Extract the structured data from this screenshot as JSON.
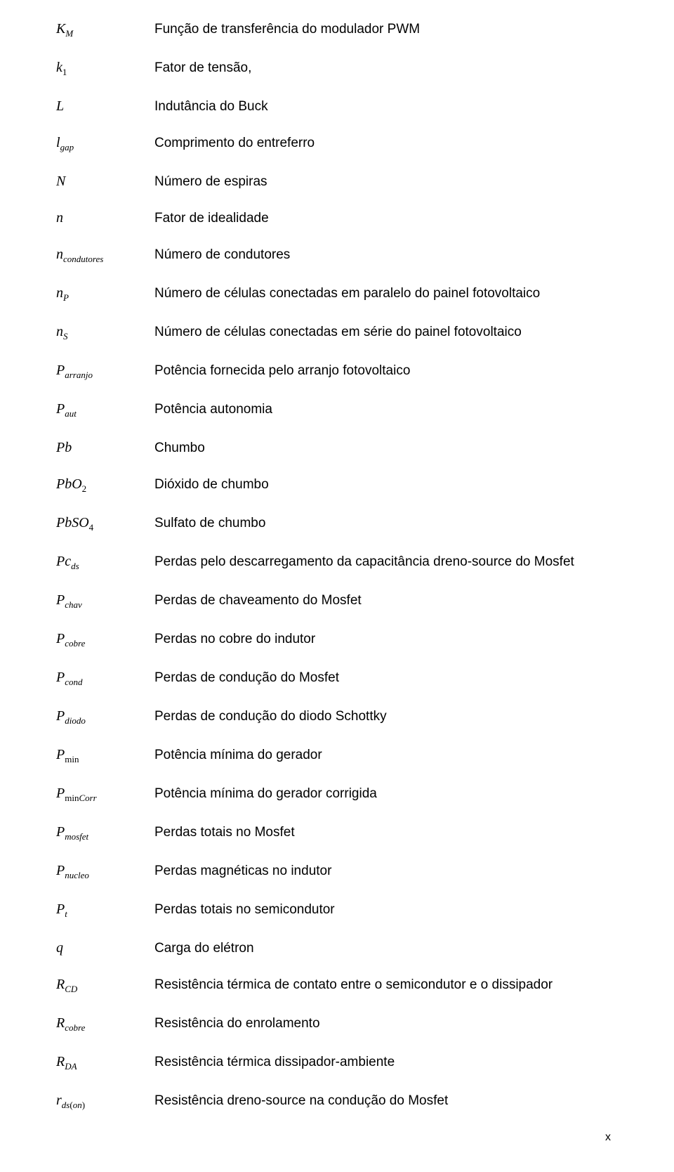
{
  "rows": [
    {
      "sym": "K<span class='sub'>M</span>",
      "desc": "Função de transferência do modulador PWM"
    },
    {
      "sym": "k<span class='subn'>1</span>",
      "desc": "Fator de tensão,"
    },
    {
      "sym": "L",
      "desc": "Indutância do Buck"
    },
    {
      "sym": "l<span class='sub'>gap</span>",
      "desc": "Comprimento do entreferro"
    },
    {
      "sym": "N",
      "desc": "Número de espiras"
    },
    {
      "sym": "n",
      "desc": "Fator de idealidade"
    },
    {
      "sym": "n<span class='sub'>condutores</span>",
      "desc": "Número de condutores"
    },
    {
      "sym": "n<span class='sub'>P</span>",
      "desc": "Número de células conectadas em paralelo do painel fotovoltaico"
    },
    {
      "sym": "n<span class='sub'>S</span>",
      "desc": "Número de células conectadas em série do painel fotovoltaico"
    },
    {
      "sym": "P<span class='sub'>arranjo</span>",
      "desc": "Potência fornecida pelo arranjo fotovoltaico"
    },
    {
      "sym": "P<span class='sub'>aut</span>",
      "desc": "Potência autonomia"
    },
    {
      "sym": "Pb",
      "desc": "Chumbo"
    },
    {
      "sym": "PbO<span class='subn'>2</span>",
      "desc": "Dióxido de chumbo"
    },
    {
      "sym": "PbSO<span class='subn'>4</span>",
      "desc": "Sulfato de chumbo"
    },
    {
      "sym": "Pc<span class='sub'>ds</span>",
      "desc": "Perdas pelo descarregamento da capacitância dreno-source do Mosfet"
    },
    {
      "sym": "P<span class='sub'>chav</span>",
      "desc": "Perdas de chaveamento do Mosfet"
    },
    {
      "sym": "P<span class='sub'>cobre</span>",
      "desc": "Perdas no cobre do indutor"
    },
    {
      "sym": "P<span class='sub'>cond</span>",
      "desc": "Perdas de condução do Mosfet"
    },
    {
      "sym": "P<span class='sub'>diodo</span>",
      "desc": "Perdas de condução do diodo Schottky"
    },
    {
      "sym": "P<span class='subn'>min</span>",
      "desc": "Potência mínima do gerador"
    },
    {
      "sym": "P<span class='subn'>min</span><span class='sub'>Corr</span>",
      "desc": "Potência mínima do gerador corrigida"
    },
    {
      "sym": "P<span class='sub'>mosfet</span>",
      "desc": "Perdas totais no Mosfet"
    },
    {
      "sym": "P<span class='sub'>nucleo</span>",
      "desc": "Perdas magnéticas no indutor"
    },
    {
      "sym": "P<span class='sub'>t</span>",
      "desc": "Perdas totais no semicondutor"
    },
    {
      "sym": "q",
      "desc": "Carga do elétron"
    },
    {
      "sym": "R<span class='sub'>CD</span>",
      "desc": "Resistência térmica de contato entre o semicondutor e o dissipador"
    },
    {
      "sym": "R<span class='sub'>cobre</span>",
      "desc": "Resistência do enrolamento"
    },
    {
      "sym": "R<span class='sub'>DA</span>",
      "desc": "Resistência térmica dissipador-ambiente"
    },
    {
      "sym": "r<span class='sub'>ds</span><span class='subn'>(</span><span class='sub'>on</span><span class='subn'>)</span>",
      "desc": "Resistência dreno-source na condução do Mosfet"
    }
  ],
  "page_number": "x"
}
